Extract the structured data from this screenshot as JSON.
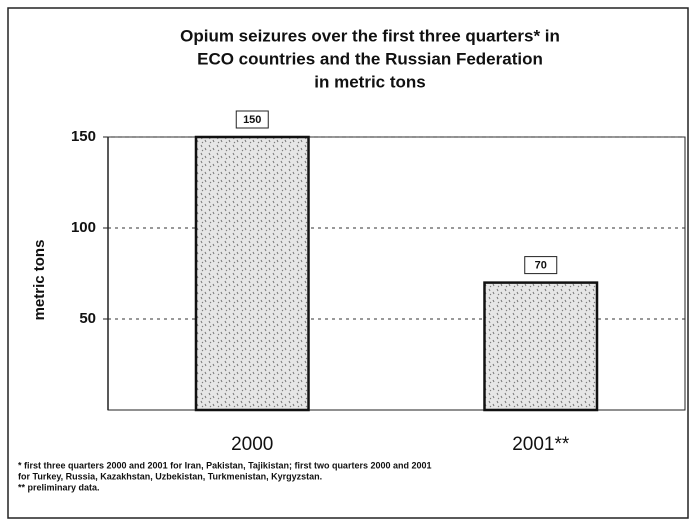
{
  "chart_data": {
    "type": "bar",
    "title": [
      "Opium seizures over the first three quarters* in",
      "ECO countries and the Russian Federation",
      "in metric tons"
    ],
    "y_label": "metric tons",
    "categories": [
      "2000",
      "2001**"
    ],
    "values": [
      150,
      70
    ],
    "color": "#d8d8d8",
    "ylim": [
      0,
      150
    ],
    "yticks": [
      50,
      100,
      150
    ],
    "grid": true,
    "footnote": [
      "* first three quarters 2000 and 2001 for Iran, Pakistan, Tajikistan; first two quarters 2000 and 2001",
      "for Turkey, Russia, Kazakhstan, Uzbekistan, Turkmenistan, Kyrgyzstan.",
      "** preliminary data."
    ]
  }
}
